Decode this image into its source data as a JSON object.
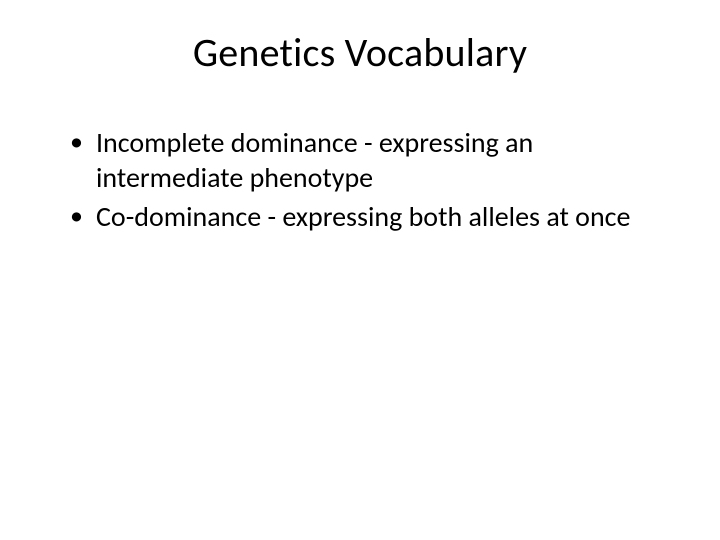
{
  "slide": {
    "title": "Genetics Vocabulary",
    "title_fontsize": 40,
    "title_color": "#000000",
    "background_color": "#ffffff",
    "bullets": [
      {
        "text": "Incomplete dominance - expressing an intermediate phenotype"
      },
      {
        "text": "Co-dominance - expressing both alleles at once"
      }
    ],
    "bullet_fontsize": 28,
    "bullet_color": "#000000",
    "font_family": "Calibri"
  }
}
